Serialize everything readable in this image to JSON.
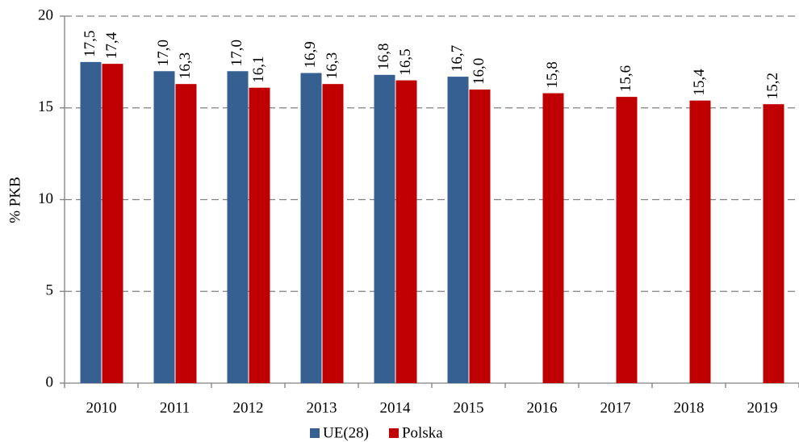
{
  "chart_data": {
    "type": "bar",
    "y_label": "% PKB",
    "categories": [
      "2010",
      "2011",
      "2012",
      "2013",
      "2014",
      "2015",
      "2016",
      "2017",
      "2018",
      "2019"
    ],
    "series": [
      {
        "name": "UE(28)",
        "color": "#376092",
        "values": [
          17.5,
          17.0,
          17.0,
          16.9,
          16.8,
          16.7,
          null,
          null,
          null,
          null
        ],
        "value_labels": [
          "17,5",
          "17,0",
          "17,0",
          "16,9",
          "16,8",
          "16,7",
          null,
          null,
          null,
          null
        ]
      },
      {
        "name": "Polska",
        "color": "#c00000",
        "values": [
          17.4,
          16.3,
          16.1,
          16.3,
          16.5,
          16.0,
          15.8,
          15.6,
          15.4,
          15.2
        ],
        "value_labels": [
          "17,4",
          "16,3",
          "16,1",
          "16,3",
          "16,5",
          "16,0",
          "15,8",
          "15,6",
          "15,4",
          "15,2"
        ]
      }
    ],
    "ylim": [
      0,
      20
    ],
    "yticks": [
      0,
      5,
      10,
      15,
      20
    ],
    "grid": true,
    "legend": "bottom"
  }
}
